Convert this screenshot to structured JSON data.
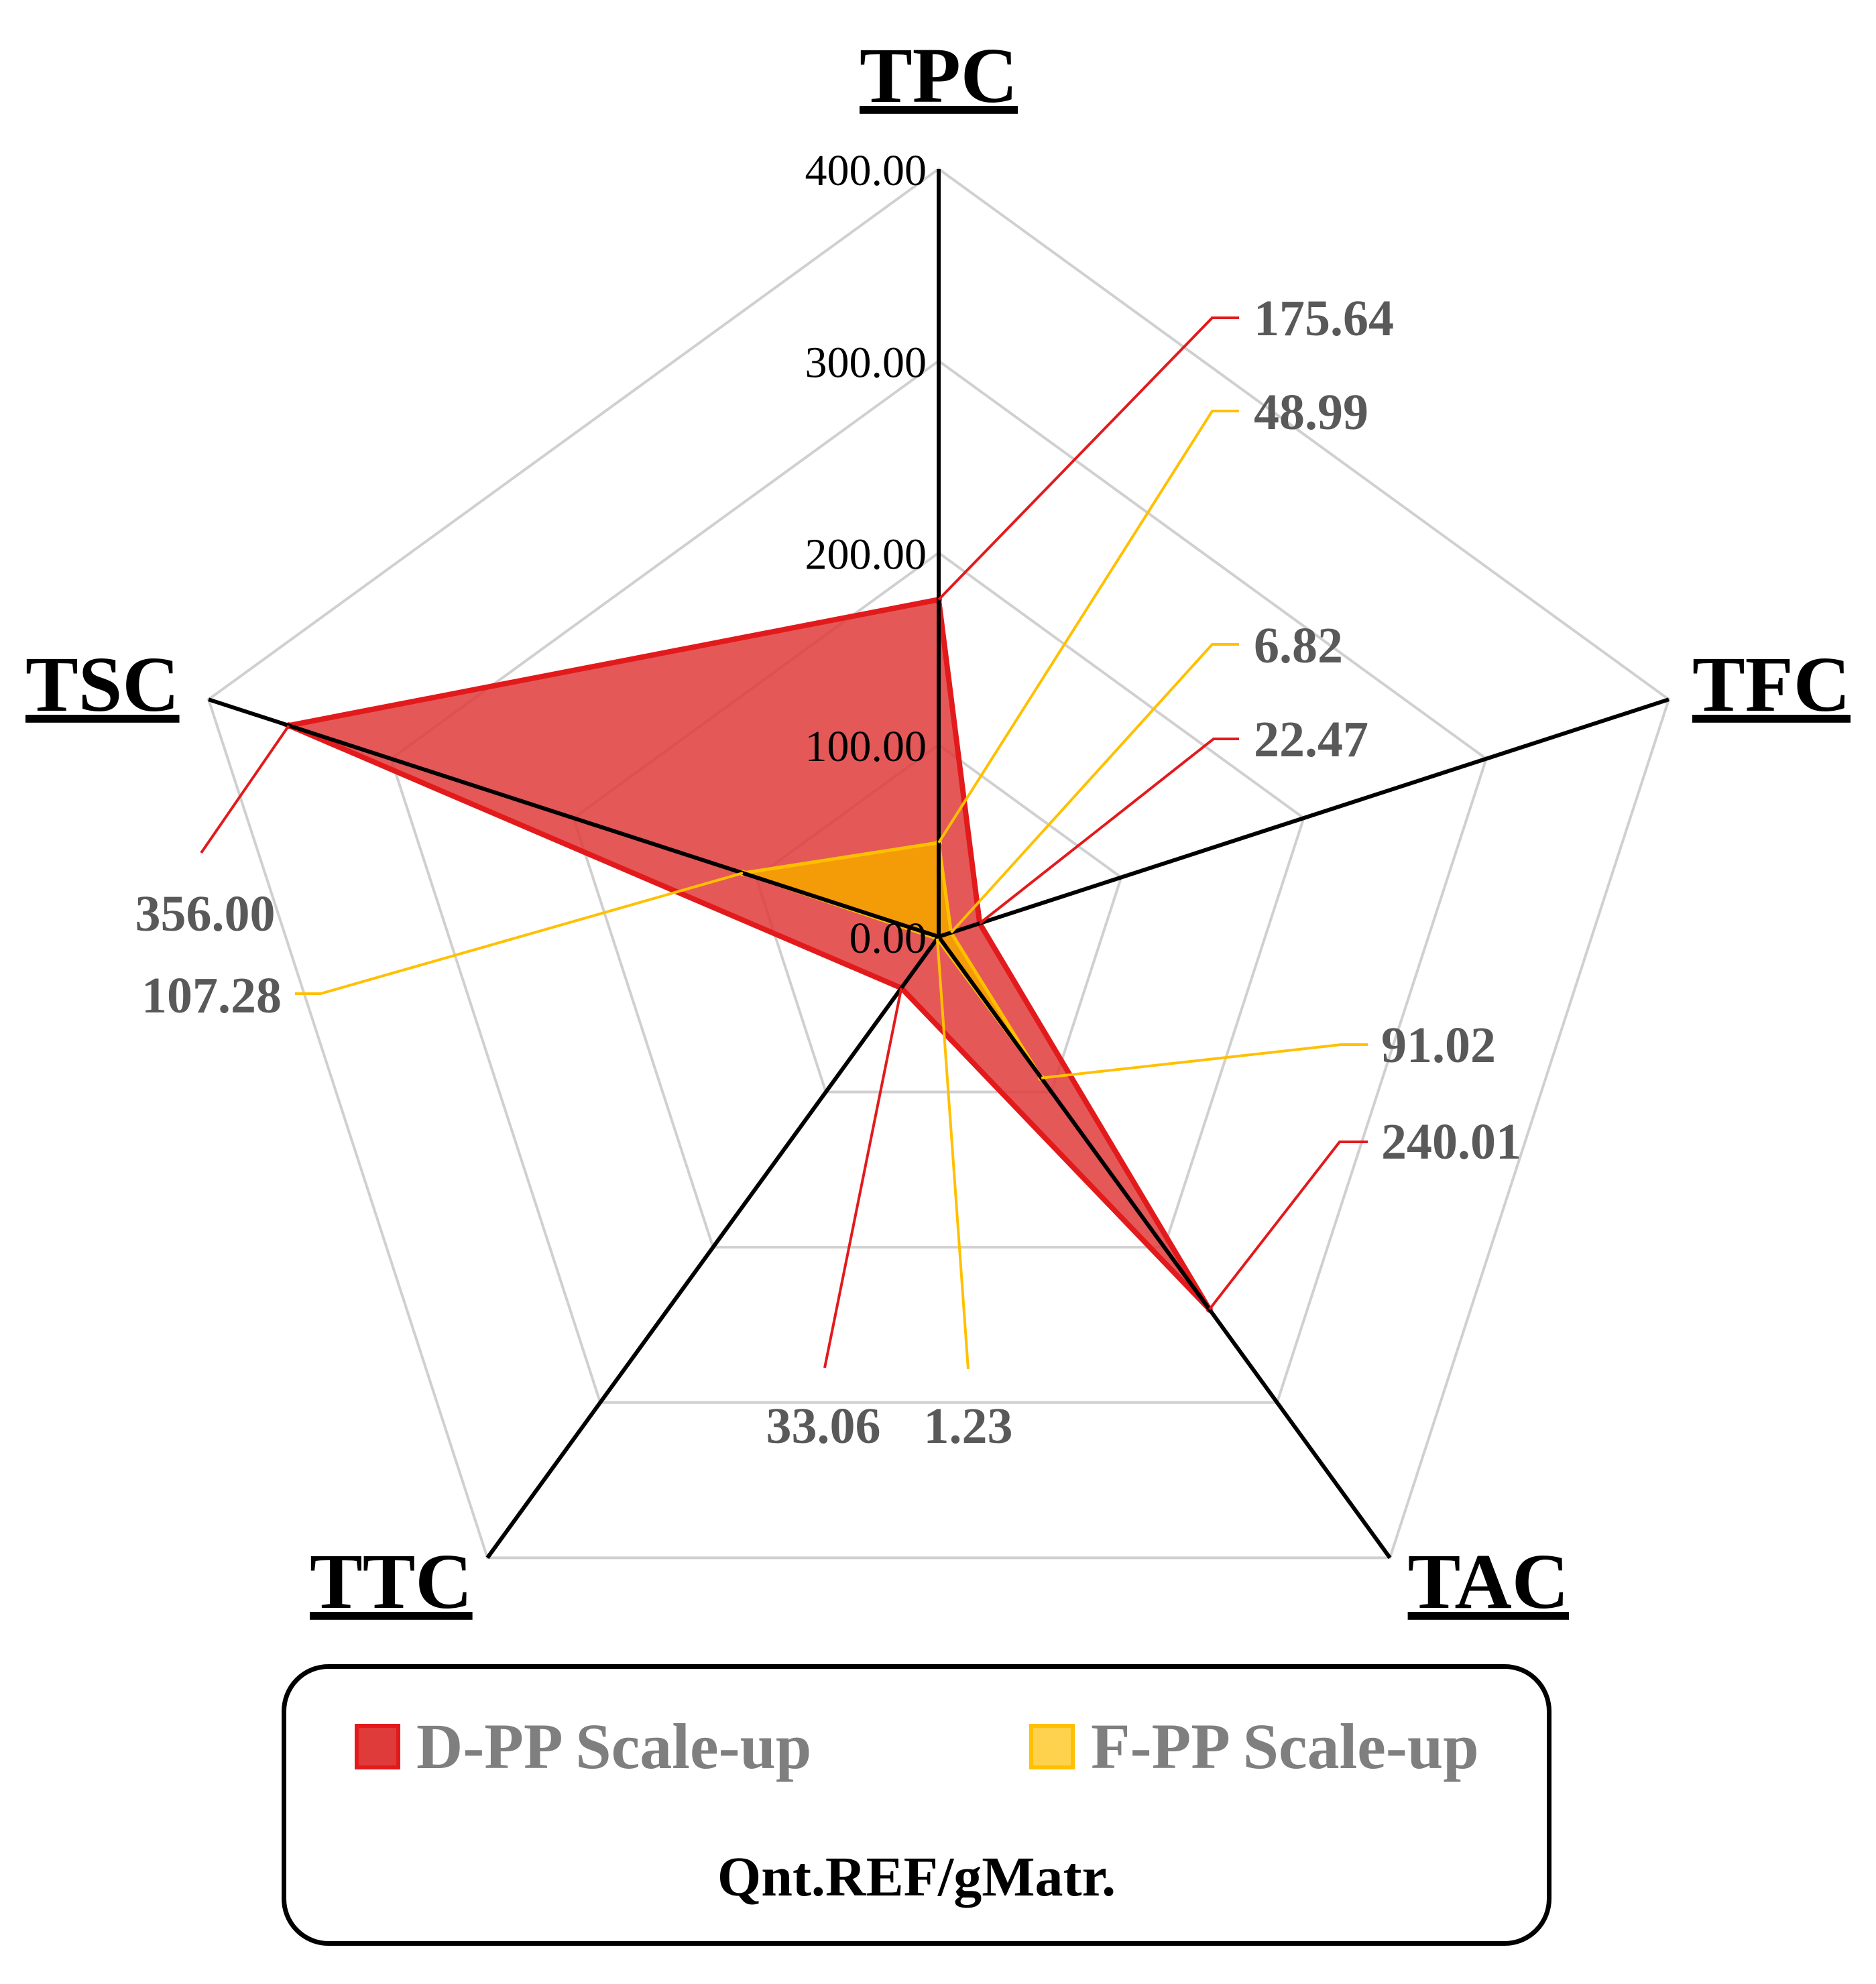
{
  "chart_data": {
    "type": "radar",
    "axes": [
      "TPC",
      "TFC",
      "TAC",
      "TTC",
      "TSC"
    ],
    "rlim": [
      0,
      400
    ],
    "ticks": [
      "0.00",
      "100.00",
      "200.00",
      "300.00",
      "400.00"
    ],
    "tick_values": [
      0,
      100,
      200,
      300,
      400
    ],
    "series": [
      {
        "name": "D-PP Scale-up",
        "values": [
          175.64,
          22.47,
          240.01,
          33.06,
          356.0
        ],
        "labels": [
          "175.64",
          "22.47",
          "240.01",
          "33.06",
          "356.00"
        ],
        "color": "#e31a1c",
        "fill": "#e03b3b"
      },
      {
        "name": "F-PP Scale-up",
        "values": [
          48.99,
          6.82,
          91.02,
          1.23,
          107.28
        ],
        "labels": [
          "48.99",
          "6.82",
          "91.02",
          "1.23",
          "107.28"
        ],
        "color": "#ffc000",
        "fill": "#f5a300"
      }
    ],
    "unit": "Qnt.REF/gMatr.",
    "grid": true,
    "legend_position": "bottom"
  }
}
